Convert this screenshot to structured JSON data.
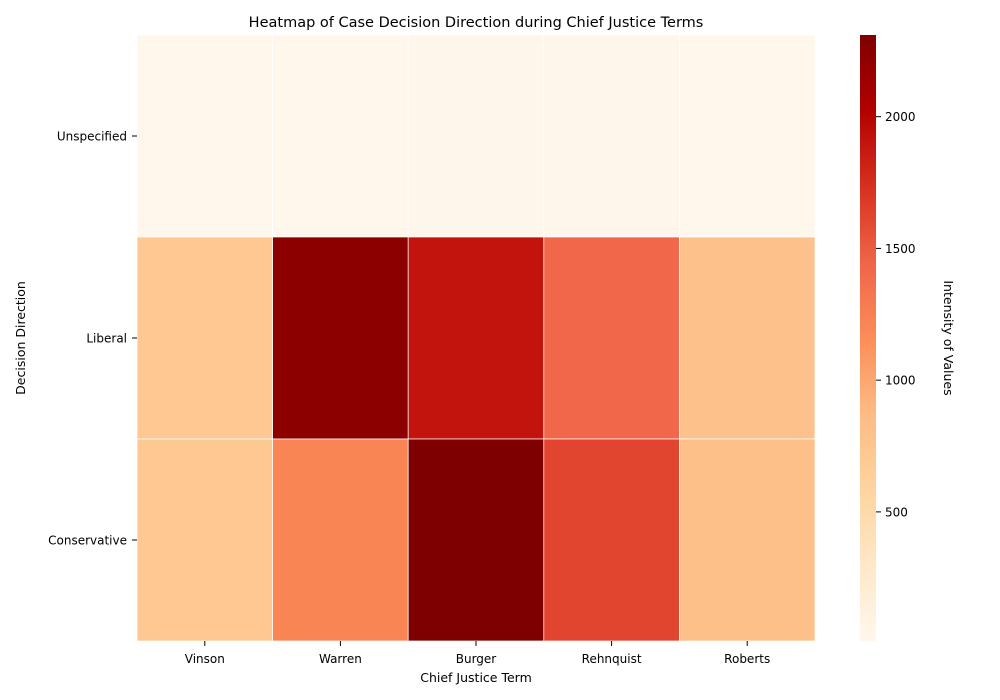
{
  "chart_data": {
    "type": "heatmap",
    "title": "Heatmap of Case Decision Direction during Chief Justice Terms",
    "xlabel": "Chief Justice Term",
    "ylabel": "Decision Direction",
    "x_categories": [
      "Vinson",
      "Warren",
      "Burger",
      "Rehnquist",
      "Roberts"
    ],
    "y_categories": [
      "Unspecified",
      "Liberal",
      "Conservative"
    ],
    "values": [
      [
        10,
        15,
        20,
        20,
        15
      ],
      [
        720,
        2230,
        1900,
        1430,
        800
      ],
      [
        720,
        1220,
        2310,
        1620,
        820
      ]
    ],
    "colorbar": {
      "label": "Intensity of Values",
      "range": [
        10,
        2310
      ],
      "ticks": [
        500,
        1000,
        1500,
        2000
      ],
      "colormap": "OrRd"
    },
    "grid": false,
    "colors": {
      "colormap_stops": [
        "#fff7ec",
        "#fee8c8",
        "#fdd49e",
        "#fdbb84",
        "#fc8d59",
        "#ef6548",
        "#d7301f",
        "#b30000",
        "#7f0000"
      ]
    }
  }
}
